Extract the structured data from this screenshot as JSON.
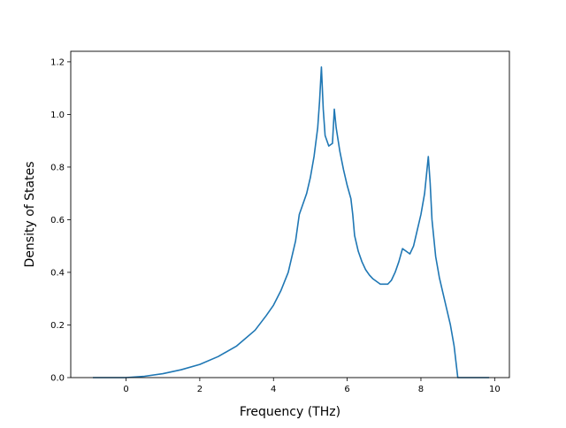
{
  "chart_data": {
    "type": "line",
    "title": "",
    "xlabel": "Frequency (THz)",
    "ylabel": "Density of States",
    "xlim": [
      -1.5,
      10.4
    ],
    "ylim": [
      0,
      1.24
    ],
    "xticks": [
      "0",
      "2",
      "4",
      "6",
      "8",
      "10"
    ],
    "yticks": [
      "0.0",
      "0.2",
      "0.4",
      "0.6",
      "0.8",
      "1.0",
      "1.2"
    ],
    "grid": false,
    "legend": "none",
    "line_color": "#1f77b4",
    "series": [
      {
        "x": [
          -0.9,
          -0.5,
          0.0,
          0.5,
          1.0,
          1.5,
          2.0,
          2.5,
          3.0,
          3.5,
          3.8,
          4.0,
          4.2,
          4.4,
          4.6,
          4.7,
          4.8,
          4.9,
          5.0,
          5.1,
          5.2,
          5.25,
          5.3,
          5.35,
          5.4,
          5.5,
          5.6,
          5.65,
          5.7,
          5.8,
          5.9,
          6.0,
          6.1,
          6.15,
          6.2,
          6.3,
          6.4,
          6.5,
          6.6,
          6.7,
          6.8,
          6.85,
          6.9,
          7.0,
          7.1,
          7.2,
          7.3,
          7.4,
          7.5,
          7.6,
          7.7,
          7.8,
          7.9,
          8.0,
          8.1,
          8.15,
          8.2,
          8.25,
          8.3,
          8.4,
          8.5,
          8.6,
          8.7,
          8.8,
          8.9,
          9.0,
          9.5,
          9.85
        ],
        "y": [
          0.0,
          0.0,
          0.0,
          0.005,
          0.015,
          0.03,
          0.05,
          0.08,
          0.12,
          0.18,
          0.235,
          0.275,
          0.33,
          0.4,
          0.52,
          0.62,
          0.66,
          0.7,
          0.76,
          0.84,
          0.95,
          1.05,
          1.18,
          1.02,
          0.92,
          0.88,
          0.89,
          1.02,
          0.95,
          0.86,
          0.79,
          0.73,
          0.68,
          0.62,
          0.54,
          0.48,
          0.44,
          0.41,
          0.39,
          0.375,
          0.365,
          0.36,
          0.355,
          0.355,
          0.355,
          0.37,
          0.4,
          0.44,
          0.49,
          0.48,
          0.47,
          0.5,
          0.56,
          0.62,
          0.7,
          0.77,
          0.84,
          0.74,
          0.6,
          0.46,
          0.38,
          0.32,
          0.26,
          0.2,
          0.12,
          0.0,
          0.0,
          0.0
        ]
      }
    ]
  }
}
